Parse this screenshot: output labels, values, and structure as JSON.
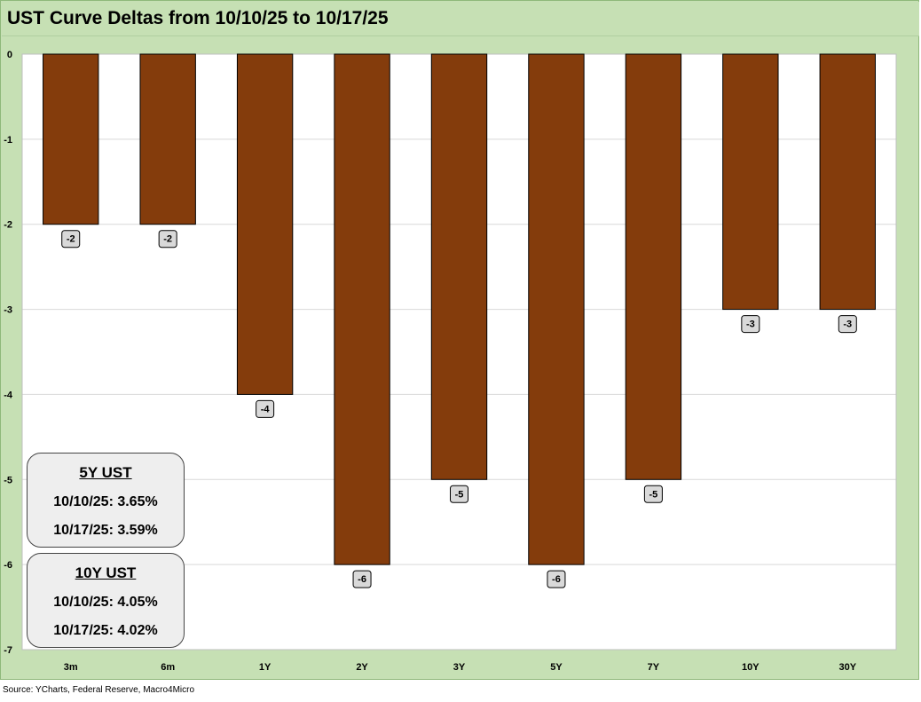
{
  "chart_data": {
    "type": "bar",
    "title": "UST Curve Deltas from 10/10/25 to 10/17/25",
    "categories": [
      "3m",
      "6m",
      "1Y",
      "2Y",
      "3Y",
      "5Y",
      "7Y",
      "10Y",
      "30Y"
    ],
    "values": [
      -2,
      -2,
      -4,
      -6,
      -5,
      -6,
      -5,
      -3,
      -3
    ],
    "ylim": [
      -7,
      0
    ],
    "yticks": [
      0,
      -1,
      -2,
      -3,
      -4,
      -5,
      -6,
      -7
    ],
    "xlabel": "",
    "ylabel": "",
    "grid": true,
    "bar_color": "#843c0c",
    "legend": "none"
  },
  "info_boxes": [
    {
      "title": "5Y UST",
      "line1": "10/10/25:  3.65%",
      "line2": "10/17/25:  3.59%"
    },
    {
      "title": "10Y UST",
      "line1": "10/10/25:  4.05%",
      "line2": "10/17/25:  4.02%"
    }
  ],
  "source": "Source: YCharts, Federal Reserve, Macro4Micro",
  "colors": {
    "frame_bg": "#c6e0b4",
    "plot_bg": "#ffffff",
    "bar": "#843c0c",
    "label_bg": "#d9d9d9"
  }
}
